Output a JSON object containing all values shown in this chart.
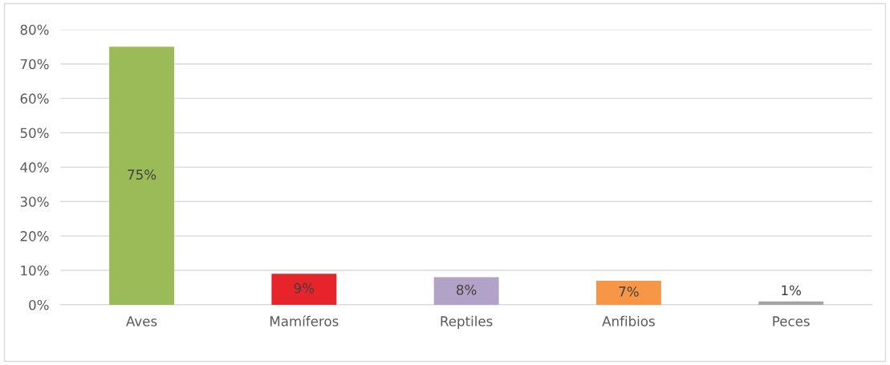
{
  "chart_data": {
    "type": "bar",
    "categories": [
      "Aves",
      "Mamíferos",
      "Reptiles",
      "Anfibios",
      "Peces"
    ],
    "values": [
      75,
      9,
      8,
      7,
      1
    ],
    "colors": [
      "#9bbb59",
      "#e8242b",
      "#b3a2c7",
      "#f79646",
      "#a5a5a5"
    ],
    "value_labels": [
      "75%",
      "9%",
      "8%",
      "7%",
      "1%"
    ],
    "ylim": [
      0,
      80
    ],
    "yticks": [
      {
        "value": 0,
        "label": "0%"
      },
      {
        "value": 10,
        "label": "10%"
      },
      {
        "value": 20,
        "label": "20%"
      },
      {
        "value": 30,
        "label": "30%"
      },
      {
        "value": 40,
        "label": "40%"
      },
      {
        "value": 50,
        "label": "50%"
      },
      {
        "value": 60,
        "label": "60%"
      },
      {
        "value": 70,
        "label": "70%"
      },
      {
        "value": 80,
        "label": "80%"
      }
    ],
    "grid": "y",
    "legend": false
  }
}
